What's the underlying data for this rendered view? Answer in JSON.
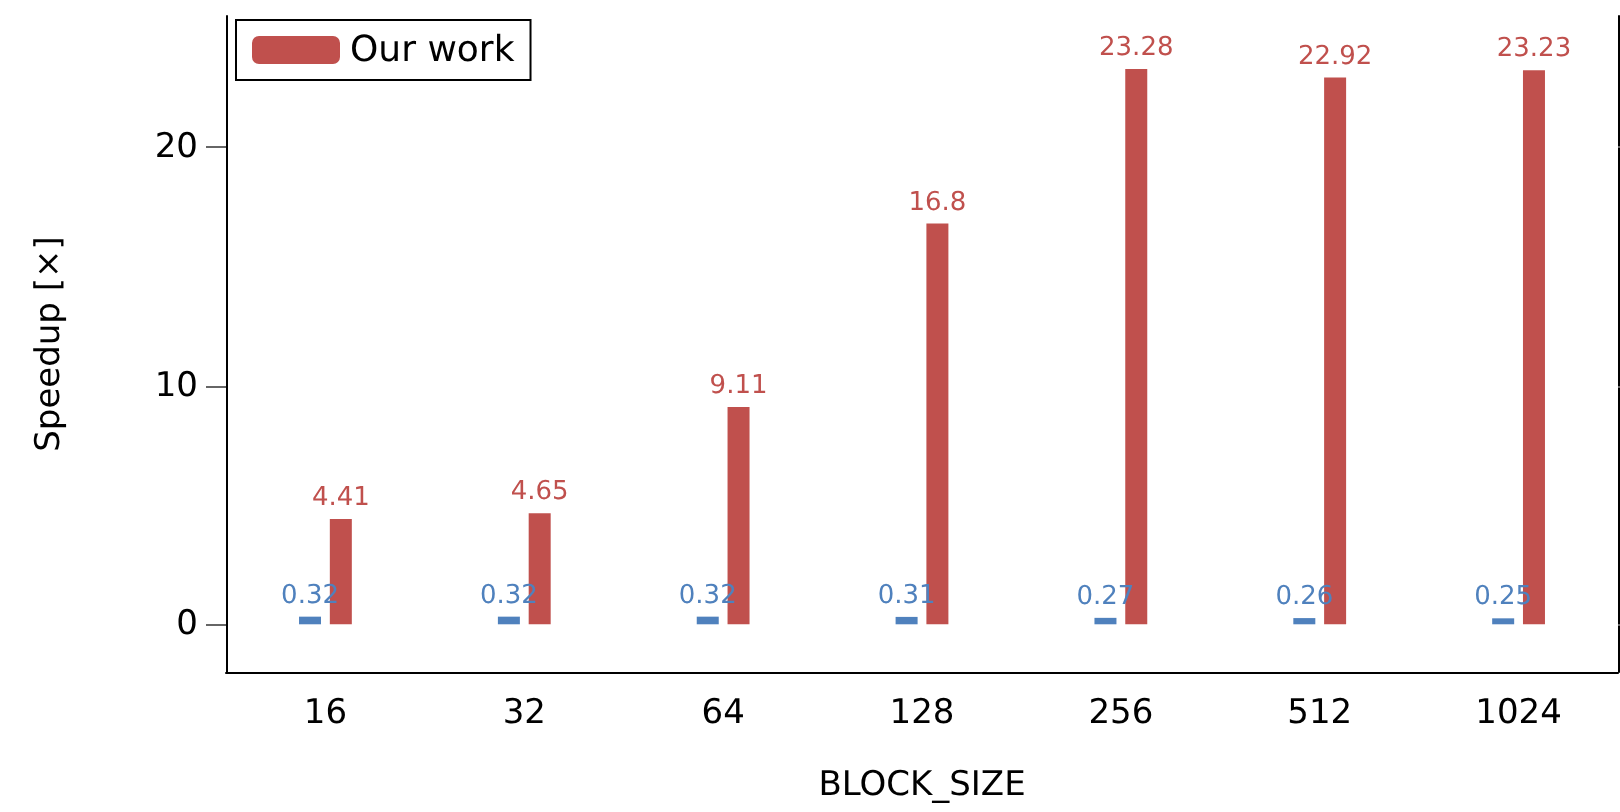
{
  "chart_data": {
    "type": "bar",
    "xlabel": "BLOCK_SIZE",
    "ylabel": "Speedup [×]",
    "categories": [
      "16",
      "32",
      "64",
      "128",
      "256",
      "512",
      "1024"
    ],
    "series": [
      {
        "color": "#4f81bd",
        "values": [
          0.32,
          0.32,
          0.32,
          0.31,
          0.27,
          0.26,
          0.25
        ]
      },
      {
        "name": "Our work",
        "color": "#c0504d",
        "values": [
          4.41,
          4.65,
          9.11,
          16.8,
          23.28,
          22.92,
          23.23
        ]
      }
    ],
    "ylim": [
      -2,
      25.5
    ],
    "yticks": [
      0,
      10,
      20
    ],
    "grid": false,
    "legend": "top left",
    "data_labels": true
  }
}
